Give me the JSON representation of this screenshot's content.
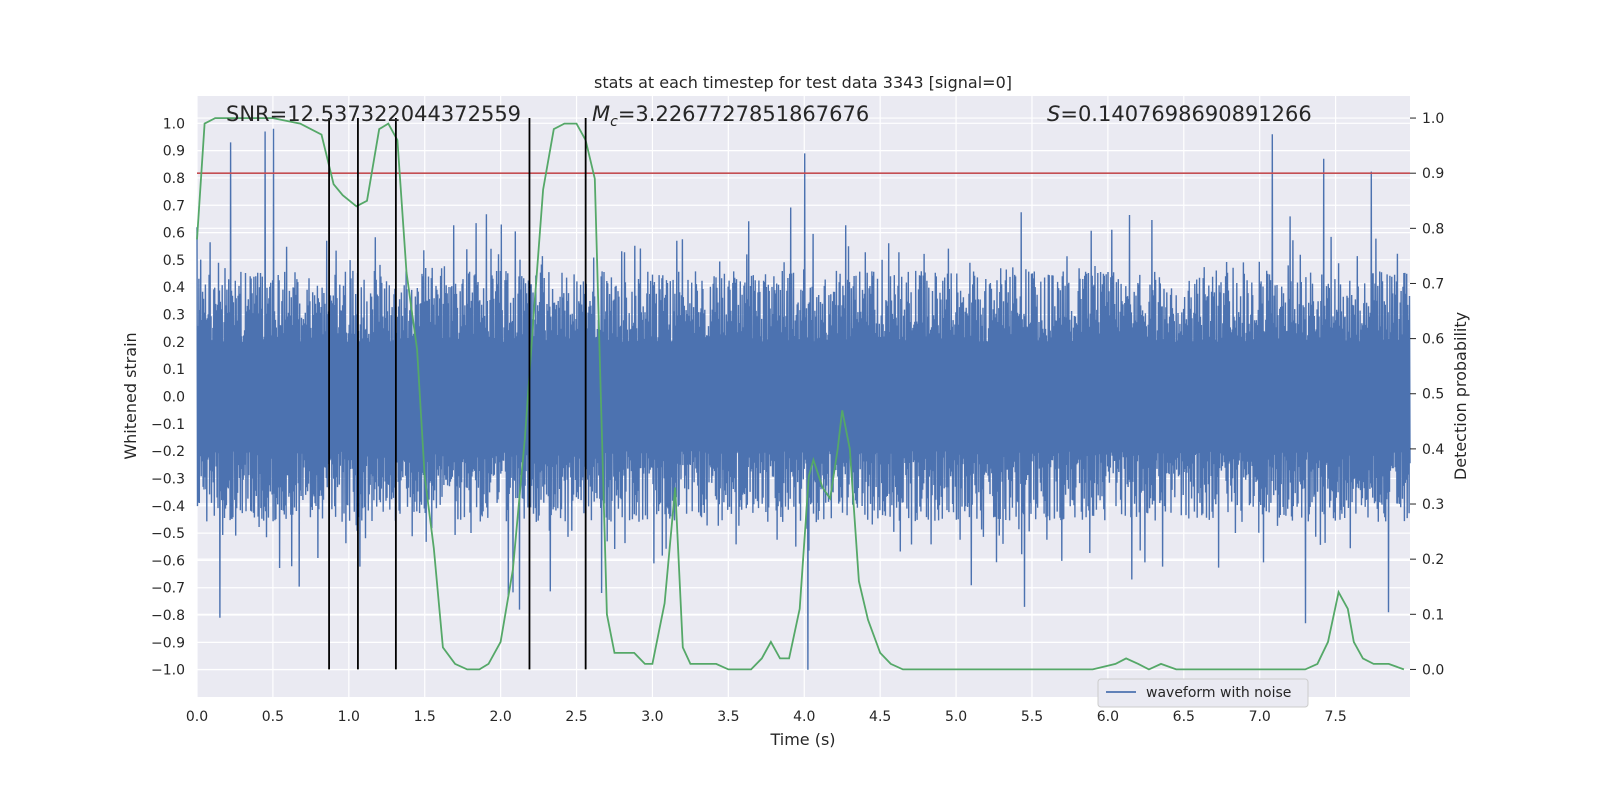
{
  "chart_data": {
    "type": "line",
    "title": "stats at each timestep for test data 3343 [signal=0]",
    "xlabel": "Time (s)",
    "ylabel": "Whitened strain",
    "ylabel_right": "Detection probability",
    "xlim": [
      0.0,
      7.99
    ],
    "ylim": [
      -1.1,
      1.1
    ],
    "ylim_right": [
      -0.05,
      1.04
    ],
    "grid": true,
    "x_ticks": [
      "0.0",
      "0.5",
      "1.0",
      "1.5",
      "2.0",
      "2.5",
      "3.0",
      "3.5",
      "4.0",
      "4.5",
      "5.0",
      "5.5",
      "6.0",
      "6.5",
      "7.0",
      "7.5"
    ],
    "y_ticks": [
      "1.0",
      "0.9",
      "0.8",
      "0.7",
      "0.6",
      "0.5",
      "0.4",
      "0.3",
      "0.2",
      "0.1",
      "0.0",
      "−0.1",
      "−0.2",
      "−0.3",
      "−0.4",
      "−0.5",
      "−0.6",
      "−0.7",
      "−0.8",
      "−0.9",
      "−1.0"
    ],
    "y_ticks_right": [
      "1.0",
      "0.9",
      "0.8",
      "0.7",
      "0.6",
      "0.5",
      "0.4",
      "0.3",
      "0.2",
      "0.1",
      "0.0"
    ],
    "annotations": {
      "snr": "SNR=12.537322044372559",
      "mc": "=3.2267727851867676",
      "mc_symbol": "M",
      "mc_sub": "c",
      "s": "=0.1407698690891266",
      "s_symbol": "S"
    },
    "legend": {
      "label": "waveform with noise",
      "position": "lower-right"
    },
    "series": [
      {
        "name": "waveform with noise",
        "axis": "left",
        "color": "#4c72b0",
        "style": "dense noise, approx. ±0.2 to ±0.6 with spikes up to ±1.0",
        "x_range": [
          0.0,
          7.99
        ],
        "peaks": [
          {
            "x": 0.22,
            "y": 0.93
          },
          {
            "x": 0.45,
            "y": 0.97
          },
          {
            "x": 0.5,
            "y": 0.98
          },
          {
            "x": 4.0,
            "y": 0.89
          },
          {
            "x": 7.08,
            "y": 0.96
          },
          {
            "x": 7.42,
            "y": 0.87
          },
          {
            "x": 0.15,
            "y": -0.81
          },
          {
            "x": 2.12,
            "y": -0.78
          },
          {
            "x": 4.02,
            "y": -1.0
          },
          {
            "x": 5.45,
            "y": -0.77
          },
          {
            "x": 7.3,
            "y": -0.83
          },
          {
            "x": 7.85,
            "y": -0.79
          }
        ]
      },
      {
        "name": "",
        "axis": "right",
        "color": "#55a868",
        "x": [
          0.0,
          0.05,
          0.12,
          0.3,
          0.5,
          0.68,
          0.82,
          0.9,
          0.96,
          1.05,
          1.12,
          1.2,
          1.26,
          1.32,
          1.38,
          1.45,
          1.5,
          1.56,
          1.62,
          1.7,
          1.78,
          1.86,
          1.92,
          2.0,
          2.08,
          2.16,
          2.22,
          2.28,
          2.35,
          2.42,
          2.5,
          2.56,
          2.62,
          2.7,
          2.75,
          2.82,
          2.88,
          2.95,
          3.0,
          3.08,
          3.15,
          3.2,
          3.25,
          3.3,
          3.42,
          3.5,
          3.6,
          3.65,
          3.72,
          3.78,
          3.84,
          3.9,
          3.97,
          4.03,
          4.06,
          4.12,
          4.17,
          4.22,
          4.25,
          4.3,
          4.36,
          4.42,
          4.5,
          4.57,
          4.65,
          4.75,
          4.82,
          5.0,
          5.5,
          5.9,
          6.05,
          6.12,
          6.2,
          6.27,
          6.35,
          6.45,
          6.55,
          6.65,
          6.75,
          7.0,
          7.2,
          7.3,
          7.38,
          7.45,
          7.52,
          7.58,
          7.62,
          7.68,
          7.75,
          7.85,
          7.95
        ],
        "y": [
          0.78,
          0.99,
          1.0,
          1.0,
          1.0,
          0.99,
          0.97,
          0.88,
          0.86,
          0.84,
          0.85,
          0.98,
          0.99,
          0.96,
          0.72,
          0.58,
          0.35,
          0.22,
          0.04,
          0.01,
          0.0,
          0.0,
          0.01,
          0.05,
          0.18,
          0.42,
          0.65,
          0.87,
          0.98,
          0.99,
          0.99,
          0.96,
          0.89,
          0.1,
          0.03,
          0.03,
          0.03,
          0.01,
          0.01,
          0.12,
          0.33,
          0.04,
          0.01,
          0.01,
          0.01,
          0.0,
          0.0,
          0.0,
          0.02,
          0.05,
          0.02,
          0.02,
          0.11,
          0.35,
          0.38,
          0.33,
          0.31,
          0.4,
          0.47,
          0.4,
          0.16,
          0.09,
          0.03,
          0.01,
          0.0,
          0.0,
          0.0,
          0.0,
          0.0,
          0.0,
          0.01,
          0.02,
          0.01,
          0.0,
          0.01,
          0.0,
          0.0,
          0.0,
          0.0,
          0.0,
          0.0,
          0.0,
          0.01,
          0.05,
          0.14,
          0.11,
          0.05,
          0.02,
          0.01,
          0.01,
          0.0
        ]
      }
    ],
    "threshold": {
      "axis": "right",
      "y": 0.9,
      "color": "#c44e52"
    },
    "vlines": {
      "color": "#000000",
      "x": [
        0.87,
        1.06,
        1.31,
        2.19,
        2.56
      ]
    }
  }
}
